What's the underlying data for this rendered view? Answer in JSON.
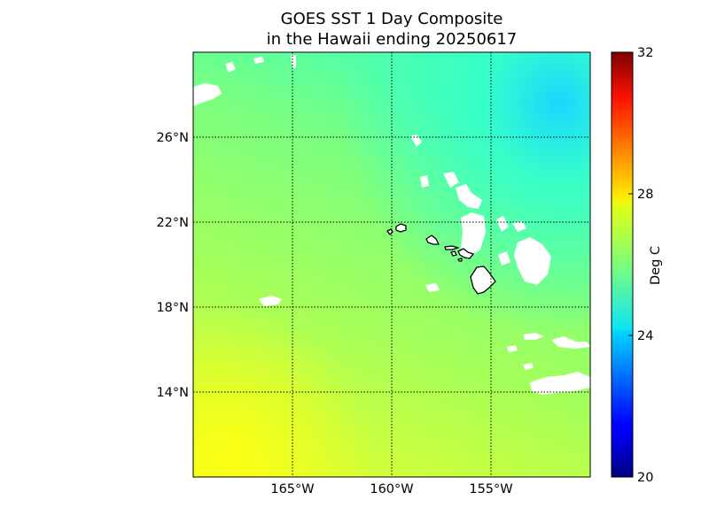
{
  "title": {
    "line1": "GOES SST 1 Day Composite",
    "line2": "in the Hawaii ending 20250617"
  },
  "map": {
    "region": "Hawaii",
    "lon_range": [
      -170,
      -150
    ],
    "lat_range": [
      10,
      30
    ],
    "meridians": [
      -165,
      -160,
      -155
    ],
    "parallels": [
      14,
      18,
      22,
      26
    ],
    "lon_labels": [
      "165°W",
      "160°W",
      "155°W"
    ],
    "lat_labels": [
      "14°N",
      "18°N",
      "22°N",
      "26°N"
    ],
    "grid_color": "#000000",
    "land_color": "#ffffff",
    "cloud_mask_color": "#ffffff"
  },
  "chart_data": {
    "type": "heatmap",
    "title": "GOES SST 1 Day Composite in the Hawaii ending 20250617",
    "colorbar": {
      "label": "Deg C",
      "range": [
        20,
        32
      ],
      "ticks": [
        20,
        24,
        28,
        32
      ],
      "colormap": "jet"
    },
    "sst_field_deg_c": {
      "lat_rows": [
        29.5,
        26,
        22,
        18,
        14,
        10.5
      ],
      "lon_cols": [
        -169,
        -165,
        -160,
        -155,
        -151
      ],
      "values": [
        [
          26.2,
          26.0,
          25.7,
          25.3,
          24.8
        ],
        [
          26.6,
          26.4,
          26.0,
          25.6,
          25.2
        ],
        [
          26.9,
          26.7,
          26.4,
          26.0,
          25.6
        ],
        [
          27.0,
          26.9,
          26.5,
          26.2,
          25.8
        ],
        [
          27.2,
          26.9,
          26.6,
          26.3,
          26.0
        ],
        [
          27.4,
          27.2,
          26.8,
          26.5,
          26.2
        ]
      ]
    }
  }
}
